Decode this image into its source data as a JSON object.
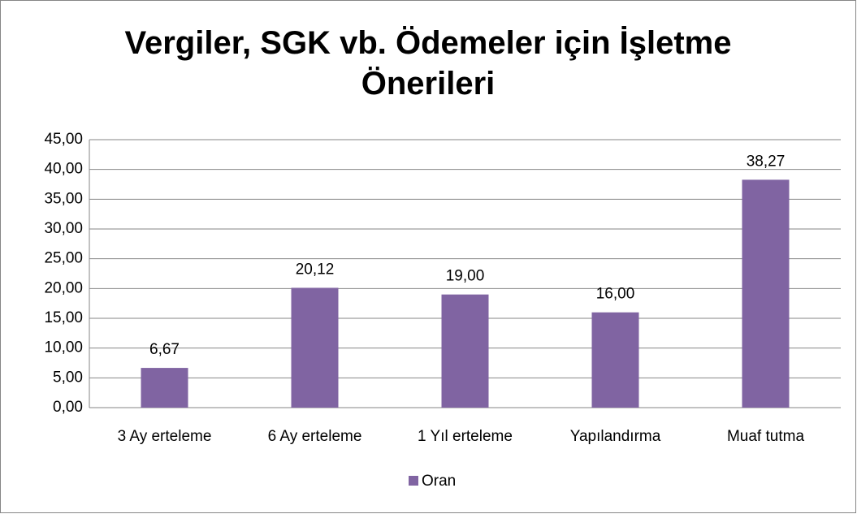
{
  "chart_data": {
    "type": "bar",
    "title": "Vergiler, SGK vb. Ödemeler için İşletme Önerileri",
    "categories": [
      "3 Ay erteleme",
      "6 Ay erteleme",
      "1 Yıl erteleme",
      "Yapılandırma",
      "Muaf tutma"
    ],
    "series": [
      {
        "name": "Oran",
        "color": "#8064a2",
        "values": [
          6.67,
          20.12,
          19.0,
          16.0,
          38.27
        ],
        "value_labels": [
          "6,67",
          "20,12",
          "19,00",
          "16,00",
          "38,27"
        ]
      }
    ],
    "ylim": [
      0,
      45
    ],
    "yticks": [
      {
        "value": 0,
        "label": "0,00"
      },
      {
        "value": 5,
        "label": "5,00"
      },
      {
        "value": 10,
        "label": "10,00"
      },
      {
        "value": 15,
        "label": "15,00"
      },
      {
        "value": 20,
        "label": "20,00"
      },
      {
        "value": 25,
        "label": "25,00"
      },
      {
        "value": 30,
        "label": "30,00"
      },
      {
        "value": 35,
        "label": "35,00"
      },
      {
        "value": 40,
        "label": "40,00"
      },
      {
        "value": 45,
        "label": "45,00"
      }
    ],
    "grid": true,
    "legend": "bottom"
  }
}
